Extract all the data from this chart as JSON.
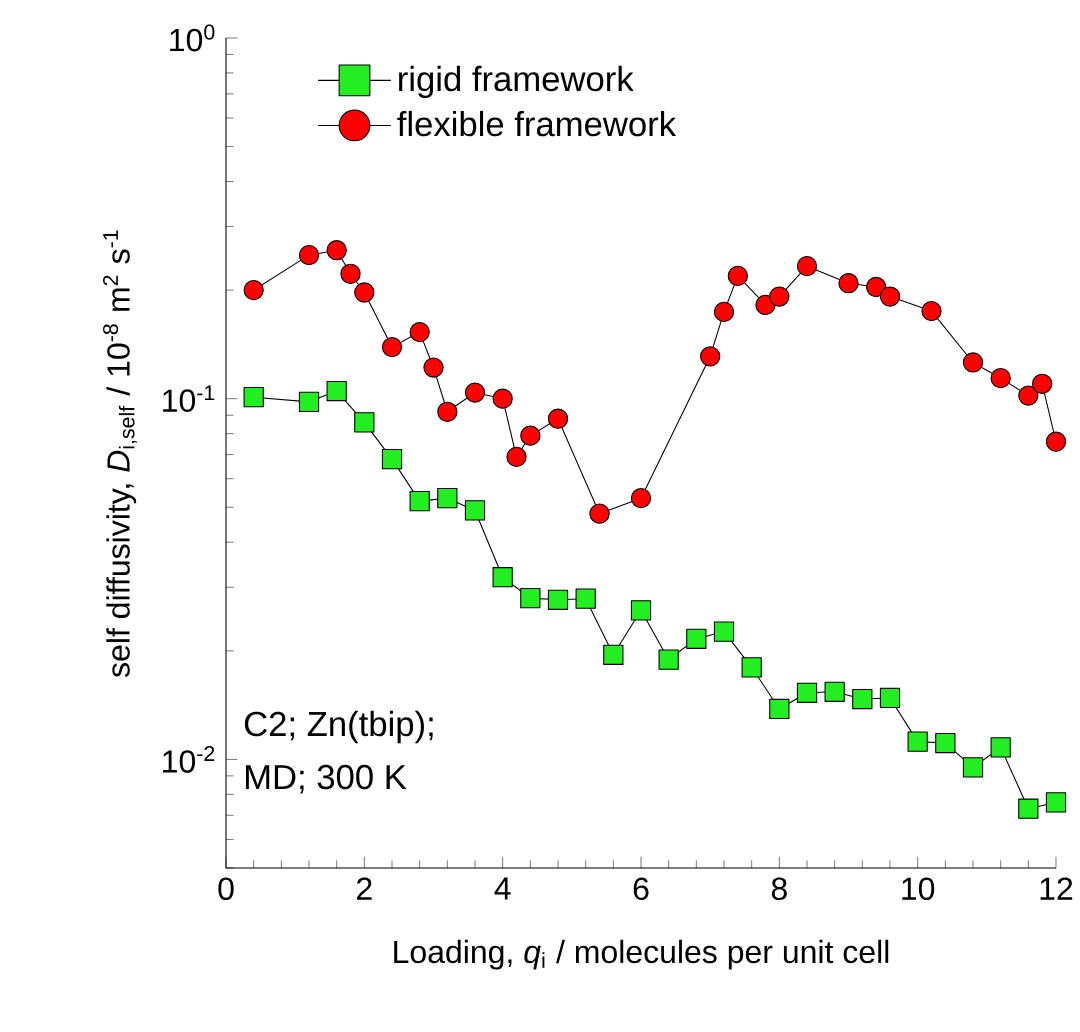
{
  "chart_data": {
    "type": "line",
    "xlabel": "Loading, *q*$_{i}$ / molecules per unit cell",
    "ylabel": "self diffusivity, *D*$_{i,self}$ / 10$^{-8}$ m$^{2}$ s$^{-1}$",
    "annotations": [
      "C2; Zn(tbip);",
      "MD; 300 K"
    ],
    "log": "y",
    "legend": "top left",
    "grid": false,
    "line_style": "solid",
    "xlim": [
      0,
      12
    ],
    "xticks": [
      0,
      2,
      4,
      6,
      8,
      10,
      12
    ],
    "ylim": [
      0.005,
      1
    ],
    "yticks": [
      {
        "value": 1,
        "label": "10$^{0}$"
      },
      {
        "value": 0.1,
        "label": "10$^{-1}$"
      },
      {
        "value": 0.01,
        "label": "10$^{-2}$"
      }
    ],
    "series": [
      {
        "name": "rigid framework",
        "color": "#22ee22",
        "marker": "square",
        "x": [
          0.4,
          1.2,
          1.6,
          2.0,
          2.4,
          2.8,
          3.2,
          3.6,
          4.0,
          4.4,
          4.8,
          5.2,
          5.6,
          6.0,
          6.4,
          6.8,
          7.2,
          7.6,
          8.0,
          8.4,
          8.8,
          9.2,
          9.6,
          10.0,
          10.4,
          10.8,
          11.2,
          11.6,
          12.0
        ],
        "values": [
          0.101,
          0.098,
          0.105,
          0.086,
          0.068,
          0.052,
          0.053,
          0.049,
          0.032,
          0.028,
          0.0277,
          0.0279,
          0.0195,
          0.0259,
          0.0189,
          0.0216,
          0.0226,
          0.018,
          0.0138,
          0.0153,
          0.0154,
          0.0147,
          0.0148,
          0.0112,
          0.0111,
          0.0095,
          0.0108,
          0.0073,
          0.0076
        ]
      },
      {
        "name": "flexible framework",
        "color": "#ff0000",
        "marker": "circle",
        "x": [
          0.4,
          1.2,
          1.6,
          1.8,
          2.0,
          2.4,
          2.8,
          3.0,
          3.2,
          3.6,
          4.0,
          4.2,
          4.4,
          4.8,
          5.4,
          6.0,
          7.0,
          7.2,
          7.4,
          7.8,
          8.0,
          8.4,
          9.0,
          9.4,
          9.6,
          10.2,
          10.8,
          11.2,
          11.6,
          11.8,
          12.0
        ],
        "values": [
          0.2,
          0.25,
          0.258,
          0.222,
          0.197,
          0.139,
          0.153,
          0.122,
          0.092,
          0.104,
          0.1,
          0.069,
          0.079,
          0.088,
          0.048,
          0.053,
          0.131,
          0.174,
          0.219,
          0.182,
          0.192,
          0.233,
          0.209,
          0.204,
          0.192,
          0.175,
          0.126,
          0.114,
          0.102,
          0.11,
          0.076
        ]
      }
    ]
  }
}
